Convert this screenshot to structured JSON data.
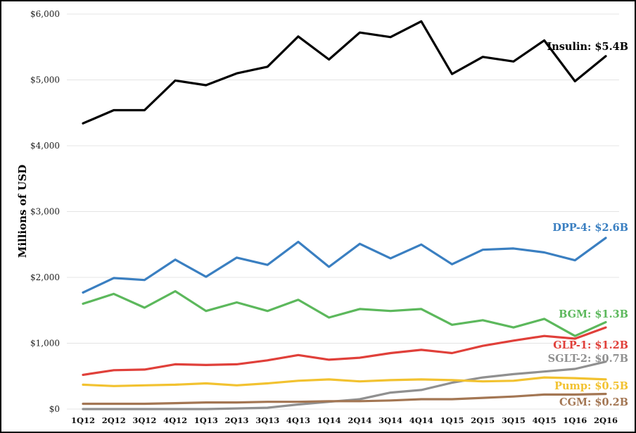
{
  "chart_data": {
    "type": "line",
    "title": "",
    "xlabel": "",
    "ylabel": "Millions of USD",
    "ylim": [
      0,
      6000
    ],
    "y_ticks": [
      "$0",
      "$1,000",
      "$2,000",
      "$3,000",
      "$4,000",
      "$5,000",
      "$6,000"
    ],
    "y_tick_values": [
      0,
      1000,
      2000,
      3000,
      4000,
      5000,
      6000
    ],
    "grid": true,
    "categories": [
      "1Q12",
      "2Q12",
      "3Q12",
      "4Q12",
      "1Q13",
      "2Q13",
      "3Q13",
      "4Q13",
      "1Q14",
      "2Q14",
      "3Q14",
      "4Q14",
      "1Q15",
      "2Q15",
      "3Q15",
      "4Q15",
      "1Q16",
      "2Q16"
    ],
    "series": [
      {
        "name": "Insulin",
        "label": "Insulin: $5.4B",
        "color": "#000000",
        "values": [
          4340,
          4540,
          4540,
          4990,
          4920,
          5100,
          5200,
          5660,
          5310,
          5720,
          5650,
          5890,
          5090,
          5350,
          5280,
          5600,
          4980,
          5360
        ]
      },
      {
        "name": "DPP-4",
        "label": "DPP-4: $2.6B",
        "color": "#3a7fc1",
        "values": [
          1770,
          1990,
          1960,
          2270,
          2010,
          2300,
          2190,
          2540,
          2160,
          2510,
          2290,
          2500,
          2200,
          2420,
          2440,
          2380,
          2260,
          2600
        ]
      },
      {
        "name": "BGM",
        "label": "BGM: $1.3B",
        "color": "#5cb85c",
        "values": [
          1600,
          1750,
          1540,
          1790,
          1490,
          1620,
          1490,
          1660,
          1390,
          1520,
          1490,
          1520,
          1280,
          1350,
          1240,
          1370,
          1110,
          1320
        ]
      },
      {
        "name": "GLP-1",
        "label": "GLP-1: $1.2B",
        "color": "#e0403a",
        "values": [
          520,
          590,
          600,
          680,
          670,
          680,
          740,
          820,
          750,
          780,
          850,
          900,
          850,
          960,
          1040,
          1110,
          1070,
          1240
        ]
      },
      {
        "name": "SGLT-2",
        "label": "SGLT-2: $0.7B",
        "color": "#909090",
        "values": [
          0,
          0,
          0,
          0,
          0,
          10,
          20,
          70,
          110,
          150,
          250,
          290,
          400,
          480,
          530,
          570,
          610,
          720
        ]
      },
      {
        "name": "Pump",
        "label": "Pump: $0.5B",
        "color": "#f2c230",
        "values": [
          370,
          350,
          360,
          370,
          390,
          360,
          390,
          430,
          450,
          420,
          440,
          450,
          440,
          420,
          430,
          480,
          470,
          450
        ]
      },
      {
        "name": "CGM",
        "label": "CGM: $0.2B",
        "color": "#a37653",
        "values": [
          80,
          80,
          80,
          90,
          100,
          100,
          110,
          110,
          120,
          120,
          130,
          150,
          150,
          170,
          190,
          220,
          220,
          230
        ]
      }
    ]
  }
}
